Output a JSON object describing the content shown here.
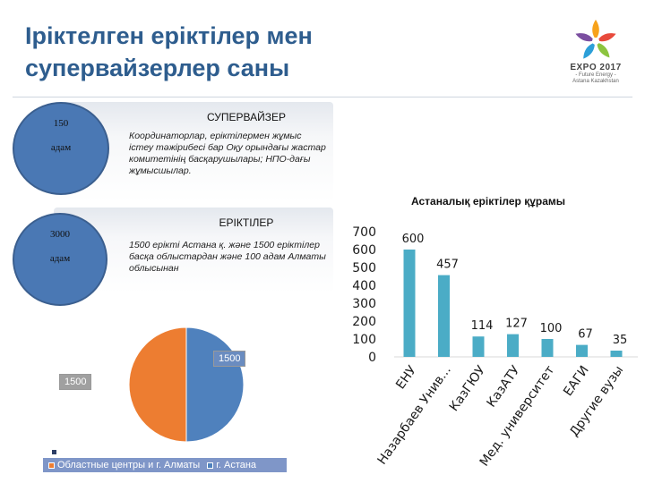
{
  "title": "Іріктелген еріктілер мен супервайзерлер саны",
  "logo": {
    "name": "EXPO 2017",
    "sub1": "- Future Energy -",
    "sub2": "Astana Kazakhstan"
  },
  "supervisor": {
    "heading": "СУПЕРВАЙЗЕР",
    "count": "150",
    "unit": "адам",
    "description": "Координаторлар, еріктілермен жұмыс істеу тәжірибесі бар Оқу орындағы жастар комитетінің басқарушылары; НПО-дағы жұмысшылар."
  },
  "volunteers": {
    "heading": "ЕРІКТІЛЕР",
    "count": "3000",
    "unit": "адам",
    "description": "1500 ерікті Астана қ. және 1500 еріктілер басқа облыстардан және 100 адам Алматы облысынан"
  },
  "chart_data": [
    {
      "type": "pie",
      "values": [
        1500,
        1500
      ],
      "labels": [
        "1500",
        "1500"
      ],
      "legend": [
        "Областные центры и г. Алматы",
        "г. Астана"
      ],
      "colors": [
        "#ed7d31",
        "#4f81bd"
      ]
    },
    {
      "type": "bar",
      "title": "Астаналық еріктілер құрамы",
      "categories": [
        "ЕНУ",
        "Назарбаев Унив...",
        "КазГЮУ",
        "КазАТУ",
        "Мед. университет",
        "ЕАГИ",
        "Другие вузы"
      ],
      "values": [
        600,
        457,
        114,
        127,
        100,
        67,
        35
      ],
      "data_labels": [
        "600",
        "457",
        "114",
        "127",
        "100",
        "67",
        "35"
      ],
      "y_ticks": [
        "0",
        "100",
        "200",
        "300",
        "400",
        "500",
        "600",
        "700"
      ],
      "ylim": [
        0,
        700
      ],
      "color": "#4bacc6",
      "grid": false
    }
  ]
}
